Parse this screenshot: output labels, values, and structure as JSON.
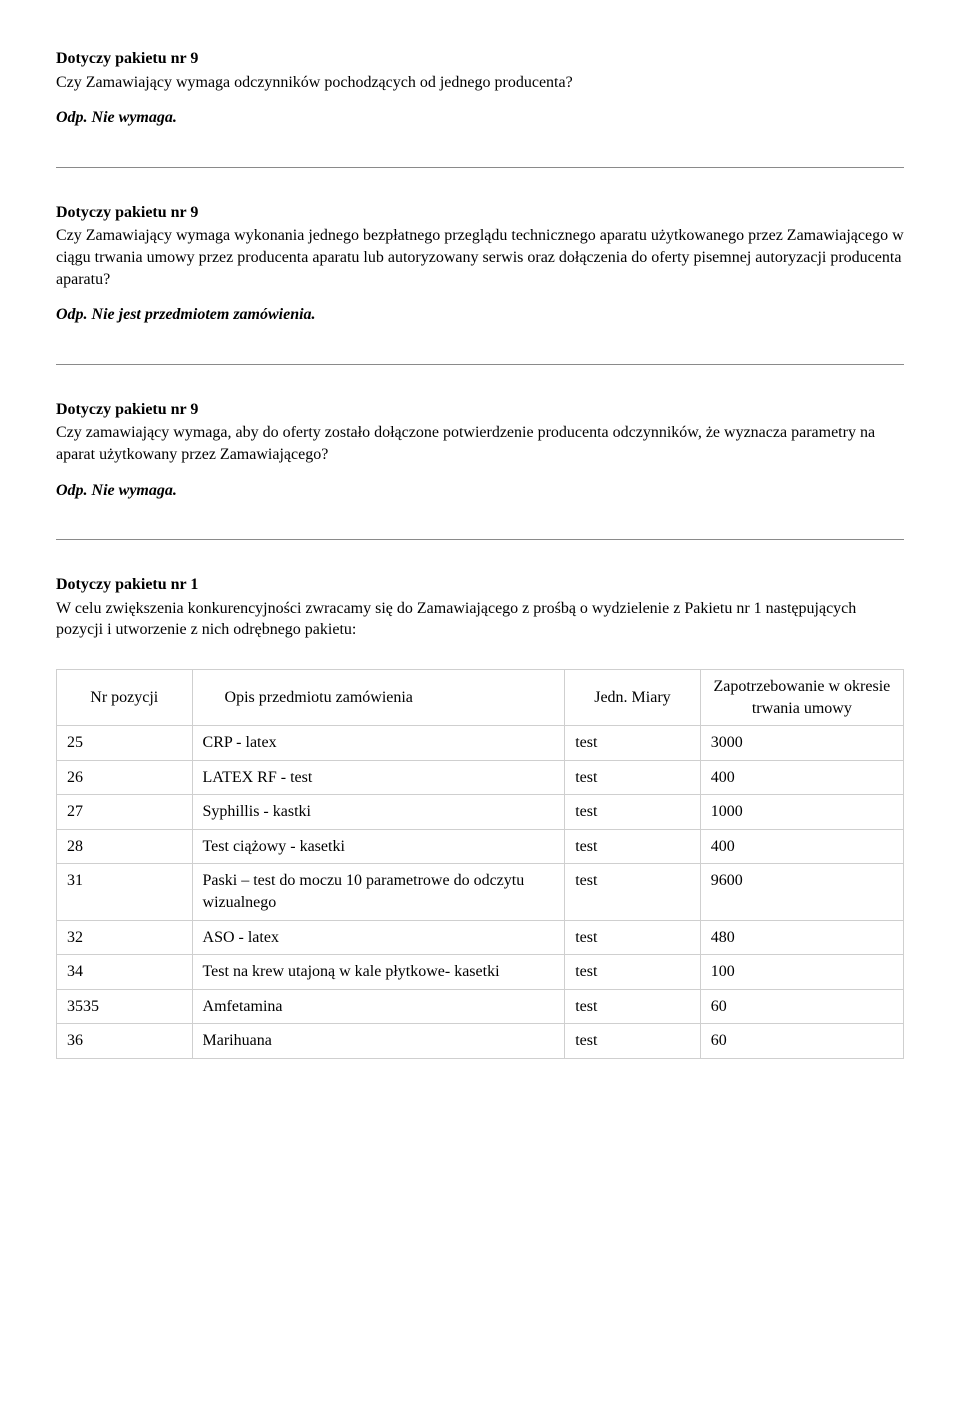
{
  "sections": [
    {
      "heading": "Dotyczy pakietu nr 9",
      "body": "Czy  Zamawiający wymaga odczynników pochodzących od jednego producenta?",
      "answer": "Odp. Nie wymaga."
    },
    {
      "heading": "Dotyczy pakietu nr 9",
      "body": "Czy  Zamawiający wymaga wykonania jednego bezpłatnego przeglądu technicznego aparatu użytkowanego przez Zamawiającego w ciągu trwania umowy przez producenta aparatu lub autoryzowany serwis oraz dołączenia do oferty pisemnej autoryzacji producenta aparatu?",
      "answer": "Odp. Nie jest przedmiotem zamówienia."
    },
    {
      "heading": "Dotyczy pakietu nr 9",
      "body": "Czy zamawiający wymaga, aby do oferty zostało dołączone potwierdzenie producenta odczynników, że wyznacza parametry na aparat użytkowany przez Zamawiającego?",
      "answer": "Odp.  Nie wymaga."
    },
    {
      "heading": "Dotyczy pakietu nr 1",
      "body": "W celu zwiększenia konkurencyjności zwracamy się do Zamawiającego z prośbą o wydzielenie z Pakietu nr 1 następujących pozycji i utworzenie z nich odrębnego pakietu:",
      "answer": null
    }
  ],
  "table": {
    "columns": [
      "Nr pozycji",
      "Opis przedmiotu zamówienia",
      "Jedn. Miary",
      "Zapotrzebowanie w okresie trwania umowy"
    ],
    "rows": [
      [
        "25",
        "CRP - latex",
        "test",
        "3000"
      ],
      [
        "26",
        "LATEX RF - test",
        "test",
        "400"
      ],
      [
        "27",
        "Syphillis - kastki",
        "test",
        "1000"
      ],
      [
        "28",
        "Test ciążowy - kasetki",
        "test",
        "400"
      ],
      [
        "31",
        "Paski – test do moczu 10 parametrowe  do odczytu wizualnego",
        "test",
        "9600"
      ],
      [
        "32",
        "ASO - latex",
        "test",
        "480"
      ],
      [
        "34",
        "Test na krew utajoną w kale płytkowe- kasetki",
        "test",
        "100"
      ],
      [
        "3535",
        "Amfetamina",
        "test",
        "60"
      ],
      [
        "36",
        "Marihuana",
        "test",
        "60"
      ]
    ]
  }
}
